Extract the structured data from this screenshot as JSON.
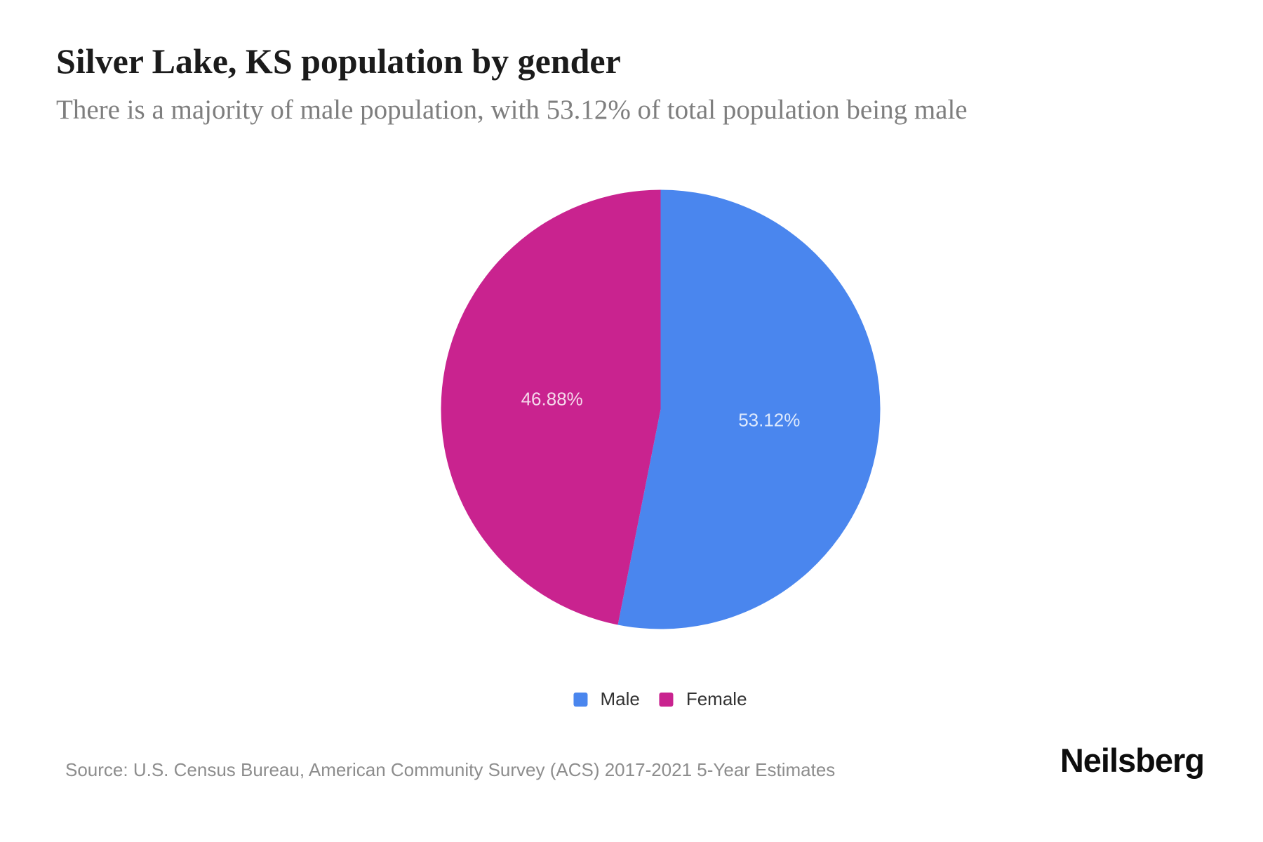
{
  "header": {
    "title": "Silver Lake, KS population by gender",
    "subtitle": "There is a majority of male population, with 53.12% of total population being male"
  },
  "chart_data": {
    "type": "pie",
    "title": "Silver Lake, KS population by gender",
    "categories": [
      "Male",
      "Female"
    ],
    "values": [
      53.12,
      46.88
    ],
    "unit": "%",
    "slice_labels": [
      "53.12%",
      "46.88%"
    ],
    "colors": [
      "#4a86ee",
      "#c9238f"
    ],
    "start_angle_deg": 0,
    "direction": "clockwise",
    "legend_position": "bottom"
  },
  "legend": {
    "items": [
      {
        "label": "Male",
        "color": "#4a86ee"
      },
      {
        "label": "Female",
        "color": "#c9238f"
      }
    ]
  },
  "footer": {
    "source": "Source: U.S. Census Bureau, American Community Survey (ACS) 2017-2021 5-Year Estimates",
    "brand": "Neilsberg"
  }
}
